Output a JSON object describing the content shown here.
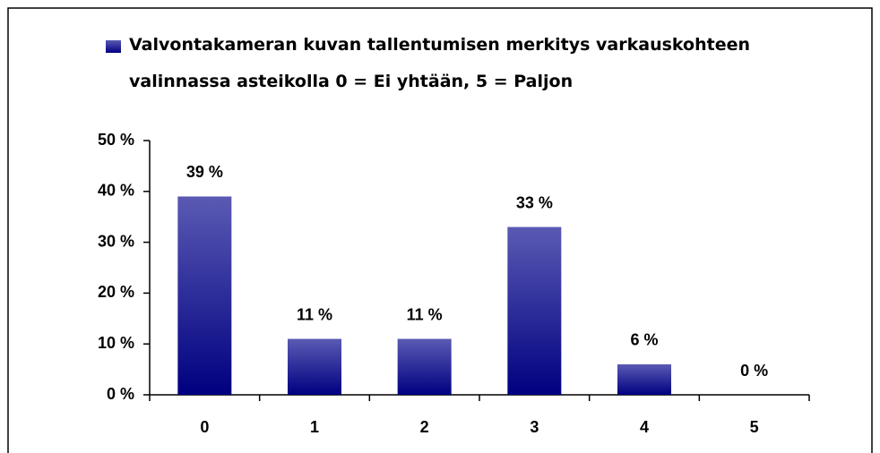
{
  "chart_data": {
    "type": "bar",
    "categories": [
      "0",
      "1",
      "2",
      "3",
      "4",
      "5"
    ],
    "series": [
      {
        "name": "Valvontakameran kuvan tallentumisen merkitys varkauskohteen valinnassa asteikolla 0 = Ei yhtään, 5 = Paljon",
        "color": "#000080",
        "values": [
          39,
          11,
          11,
          33,
          6,
          0
        ],
        "value_labels": [
          "39 %",
          "11 %",
          "11 %",
          "33 %",
          "6 %",
          "0 %"
        ]
      }
    ],
    "ylim": [
      0,
      50
    ],
    "yticks": [
      {
        "value": 0,
        "label": "0 %"
      },
      {
        "value": 10,
        "label": "10 %"
      },
      {
        "value": 20,
        "label": "20 %"
      },
      {
        "value": 30,
        "label": "30 %"
      },
      {
        "value": 40,
        "label": "40 %"
      },
      {
        "value": 50,
        "label": "50 %"
      }
    ],
    "legend": "top"
  }
}
